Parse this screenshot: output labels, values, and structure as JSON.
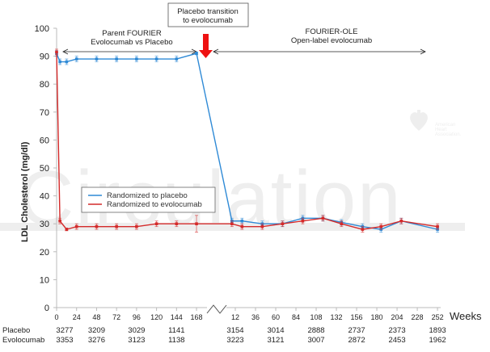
{
  "chart_data": {
    "type": "line",
    "ylabel": "LDL Cholesterol (mg/dl)",
    "xlabel": "Weeks",
    "ylim": [
      0,
      100
    ],
    "yticks": [
      0,
      10,
      20,
      30,
      40,
      50,
      60,
      70,
      80,
      90,
      100
    ],
    "grid": false,
    "legend_placement": "center-left",
    "parent_xticks": [
      "0",
      "24",
      "48",
      "72",
      "96",
      "120",
      "144",
      "168"
    ],
    "ole_xticks": [
      "12",
      "36",
      "60",
      "84",
      "108",
      "132",
      "156",
      "180",
      "204",
      "228",
      "252"
    ],
    "series": [
      {
        "name": "Randomized to placebo",
        "color": "#2f8ad6",
        "parent": {
          "x": [
            0,
            4,
            12,
            24,
            48,
            72,
            96,
            120,
            144,
            168
          ],
          "y": [
            91,
            88,
            88,
            89,
            89,
            89,
            89,
            89,
            89,
            91
          ],
          "err": [
            1,
            1,
            1,
            1,
            1,
            1,
            1,
            1,
            1,
            0.5
          ]
        },
        "ole": {
          "x": [
            8,
            20,
            44,
            68,
            92,
            116,
            138,
            163,
            185,
            209,
            252
          ],
          "y": [
            31,
            31,
            30,
            30,
            32,
            32,
            30.5,
            29,
            28,
            31,
            28
          ],
          "err": [
            1,
            1,
            1,
            1,
            1,
            1,
            1,
            1,
            1,
            1,
            1
          ]
        }
      },
      {
        "name": "Randomized to evolocumab",
        "color": "#d42a2a",
        "parent": {
          "x": [
            0,
            4,
            12,
            24,
            48,
            72,
            96,
            120,
            144,
            168
          ],
          "y": [
            91.5,
            31,
            28,
            29,
            29,
            29,
            29,
            30,
            30,
            30
          ],
          "err": [
            1,
            1,
            0.5,
            1,
            1,
            1,
            1,
            1,
            1,
            3
          ]
        },
        "ole": {
          "x": [
            8,
            20,
            44,
            68,
            92,
            116,
            138,
            163,
            185,
            209,
            252
          ],
          "y": [
            30,
            29,
            29,
            30,
            31,
            32,
            30,
            28,
            29,
            31,
            29
          ],
          "err": [
            1,
            1,
            1,
            1,
            1,
            1,
            1,
            1,
            1,
            1,
            1
          ]
        }
      }
    ],
    "annotations": {
      "transition_box": [
        "Placebo transition",
        "to evolocumab"
      ],
      "parent_label": [
        "Parent FOURIER",
        "Evolocumab vs Placebo"
      ],
      "ole_label": [
        "FOURIER-OLE",
        "Open-label evolocumab"
      ]
    },
    "at_risk": {
      "placebo_label": "Placebo",
      "evolocumab_label": "Evolocumab",
      "parent_weeks": [
        0,
        48,
        96,
        144
      ],
      "ole_weeks": [
        12,
        60,
        108,
        156,
        204,
        252
      ],
      "placebo_parent": [
        "3277",
        "3209",
        "3029",
        "1141"
      ],
      "evolocumab_parent": [
        "3353",
        "3276",
        "3123",
        "1138"
      ],
      "placebo_ole": [
        "3154",
        "3014",
        "2888",
        "2737",
        "2373",
        "1893"
      ],
      "evolocumab_ole": [
        "3223",
        "3121",
        "3007",
        "2872",
        "2453",
        "1962"
      ]
    }
  },
  "watermark": {
    "text": "Circulation",
    "logo_text": [
      "American",
      "Heart",
      "Association."
    ]
  }
}
